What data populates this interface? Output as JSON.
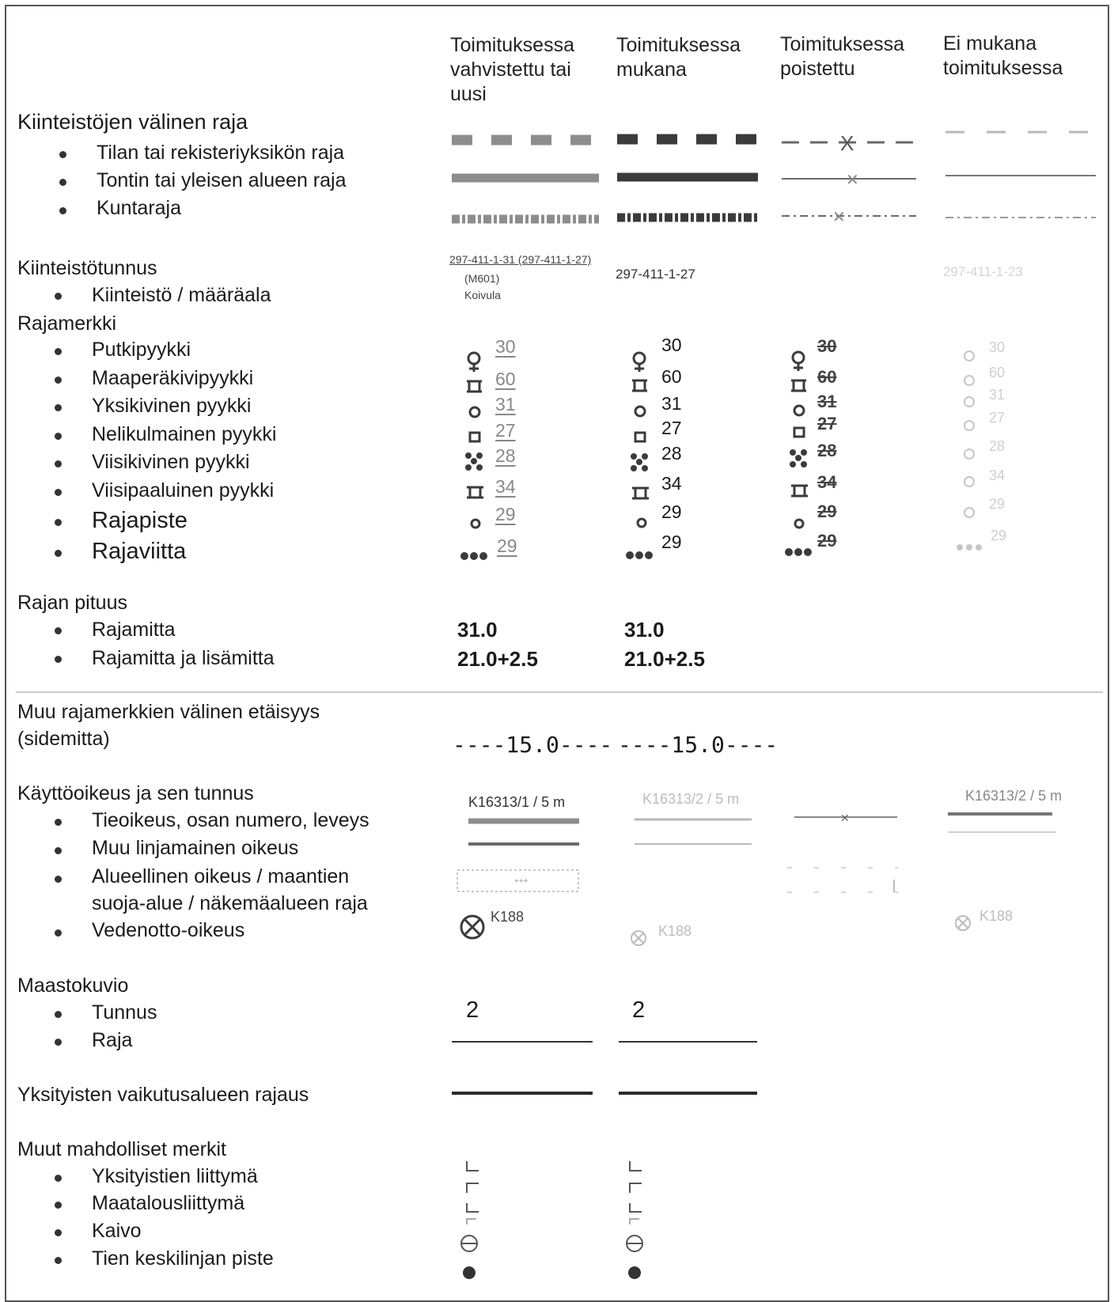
{
  "colors": {
    "grey_symbol": "#8d8d8d",
    "dark_symbol": "#3b3b3b",
    "removed": "#6a6a6a",
    "not_included": "#b8b8b8"
  },
  "columns": {
    "c1": "Toimituksessa\nvahvistettu tai\nuusi",
    "c2": "Toimituksessa\nmukana",
    "c3": "Toimituksessa\npoistettu",
    "c4": "Ei mukana\ntoimituksessa"
  },
  "sections": {
    "boundary": {
      "title": "Kiinteistöjen välinen raja",
      "items": [
        "Tilan tai rekisteriyksikön raja",
        "Tontin tai yleisen alueen raja",
        "Kuntaraja"
      ]
    },
    "id": {
      "title": "Kiinteistötunnus",
      "items": [
        "Kiinteistö / määräala"
      ],
      "c1_line1": "297-411-1-31 (297-411-1-27)",
      "c1_line2": "(M601)",
      "c1_line3": "Koivula",
      "c2": "297-411-1-27",
      "c4": "297-411-1-23"
    },
    "markers": {
      "title": "Rajamerkki",
      "items": [
        "Putkipyykki",
        "Maaperäkivipyykki",
        "Yksikivinen pyykki",
        "Nelikulmainen pyykki",
        "Viisikivinen pyykki",
        "Viisipaaluinen pyykki",
        "Rajapiste",
        "Rajaviitta"
      ],
      "numbers": [
        "30",
        "60",
        "31",
        "27",
        "28",
        "34",
        "29",
        "29"
      ]
    },
    "length": {
      "title": "Rajan pituus",
      "items": [
        "Rajamitta",
        "Rajamitta ja lisämitta"
      ],
      "v1": "31.0",
      "v2": "21.0+2.5"
    },
    "tie": {
      "title_line1": "Muu rajamerkkien välinen etäisyys",
      "title_line2": "(sidemitta)",
      "value": "----15.0----"
    },
    "rights": {
      "title": "Käyttöoikeus ja sen tunnus",
      "items": [
        "Tieoikeus, osan numero, leveys",
        "Muu linjamainen oikeus",
        "Alueellinen oikeus / maantien",
        "suoja-alue / näkemäalueen raja",
        "Vedenotto-oikeus"
      ],
      "c1_label": "K16313/1 / 5 m",
      "c2_label": "K16313/2 / 5 m",
      "c4_label": "K16313/2 / 5 m",
      "water_c1": "K188",
      "water_c2": "K188",
      "water_c4": "K188"
    },
    "terrain": {
      "title": "Maastokuvio",
      "items": [
        "Tunnus",
        "Raja"
      ],
      "value": "2"
    },
    "private_area": {
      "title": "Yksityisten vaikutusalueen rajaus"
    },
    "other": {
      "title": "Muut mahdolliset merkit",
      "items": [
        "Yksityistien liittymä",
        "Maatalousliittymä",
        "Kaivo",
        "Tien keskilinjan piste"
      ]
    }
  }
}
